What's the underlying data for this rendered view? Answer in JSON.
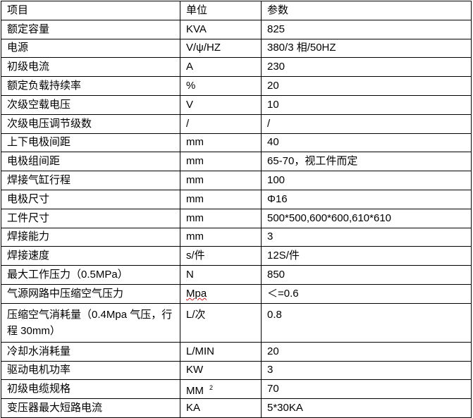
{
  "table": {
    "headers": [
      "项目",
      "单位",
      "参数"
    ],
    "rows": [
      {
        "item": "额定容量",
        "unit": "KVA",
        "value": "825"
      },
      {
        "item": "电源",
        "unit": "V/ψ/HZ",
        "value": "380/3 相/50HZ"
      },
      {
        "item": "初级电流",
        "unit": "A",
        "value": "230"
      },
      {
        "item": "额定负载持续率",
        "unit": "%",
        "value": "20"
      },
      {
        "item": "次级空载电压",
        "unit": "V",
        "value": "10"
      },
      {
        "item": "次级电压调节级数",
        "unit": "/",
        "value": "/"
      },
      {
        "item": "上下电极间距",
        "unit": "mm",
        "value": "40"
      },
      {
        "item": "电极组间距",
        "unit": "mm",
        "value": "65-70，视工件而定"
      },
      {
        "item": "焊接气缸行程",
        "unit": "mm",
        "value": "100"
      },
      {
        "item": "电极尺寸",
        "unit": "mm",
        "value": "Φ16"
      },
      {
        "item": "工件尺寸",
        "unit": "mm",
        "value": "500*500,600*600,610*610"
      },
      {
        "item": "焊接能力",
        "unit": "mm",
        "value": "3"
      },
      {
        "item": "焊接速度",
        "unit": "s/件",
        "value": "12S/件"
      },
      {
        "item": "最大工作压力（0.5MPa）",
        "unit": "N",
        "value": "850"
      },
      {
        "item": "气源网路中压缩空气压力",
        "unit": "Mpa",
        "value": "＜=0.6"
      },
      {
        "item": "压缩空气消耗量（0.4Mpa 气压，行程 30mm）",
        "unit": "L/次",
        "value": "0.8"
      },
      {
        "item": "冷却水消耗量",
        "unit": "L/MIN",
        "value": "20"
      },
      {
        "item": "驱动电机功率",
        "unit": "KW",
        "value": "3"
      },
      {
        "item": "初级电缆规格",
        "unit": "MM",
        "unit_sup": "2",
        "value": "70"
      },
      {
        "item": "变压器最大短路电流",
        "unit": "KA",
        "value": "5*30KA"
      }
    ]
  },
  "colors": {
    "spellcheck_underline": "#d02020"
  }
}
